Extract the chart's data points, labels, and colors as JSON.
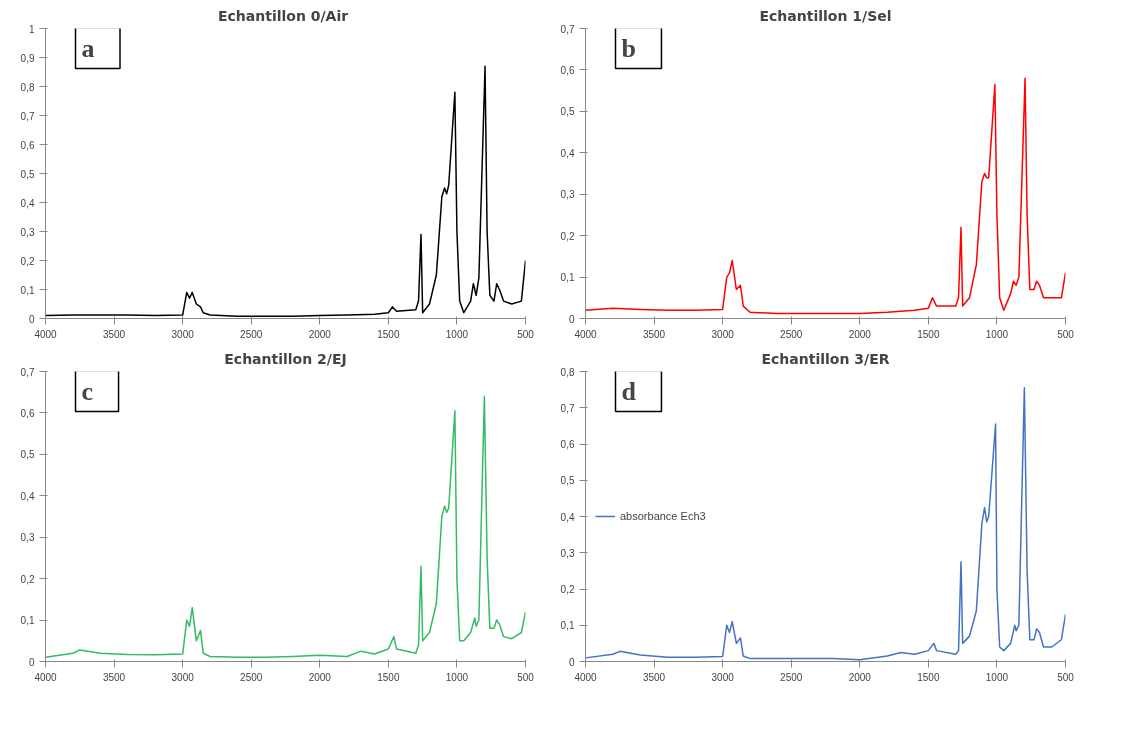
{
  "chart_data": [
    {
      "type": "line",
      "title": "Echantillon  0/Air",
      "annotations": [
        "a"
      ],
      "xlim": [
        4000,
        500
      ],
      "xticks": [
        4000,
        3500,
        3000,
        2500,
        2000,
        1500,
        1000,
        500
      ],
      "ylim": [
        0,
        1
      ],
      "yticks": [
        0,
        {
          "value": 0.1,
          "label": "0,1"
        },
        {
          "value": 0.2,
          "label": "0,2"
        },
        {
          "value": 0.3,
          "label": "0,3"
        },
        {
          "value": 0.4,
          "label": "0,4"
        },
        {
          "value": 0.5,
          "label": "0,5"
        },
        {
          "value": 0.6,
          "label": "0,6"
        },
        {
          "value": 0.7,
          "label": "0,7"
        },
        {
          "value": 0.8,
          "label": "0,8"
        },
        {
          "value": 0.9,
          "label": "0,9"
        },
        1
      ],
      "grid": false,
      "legend": false,
      "line_style": "solid",
      "x": [
        4000,
        3800,
        3600,
        3400,
        3200,
        3000,
        2970,
        2950,
        2930,
        2900,
        2870,
        2850,
        2800,
        2600,
        2400,
        2200,
        2000,
        1800,
        1600,
        1500,
        1470,
        1440,
        1300,
        1280,
        1262,
        1250,
        1200,
        1150,
        1110,
        1090,
        1075,
        1060,
        1015,
        1000,
        980,
        950,
        900,
        880,
        860,
        840,
        795,
        780,
        760,
        730,
        710,
        690,
        660,
        600,
        530,
        500
      ],
      "series": [
        {
          "color": "#000000",
          "values": [
            0.01,
            0.012,
            0.012,
            0.012,
            0.01,
            0.012,
            0.09,
            0.07,
            0.09,
            0.05,
            0.04,
            0.02,
            0.012,
            0.008,
            0.008,
            0.008,
            0.01,
            0.012,
            0.015,
            0.02,
            0.04,
            0.025,
            0.03,
            0.06,
            0.29,
            0.02,
            0.05,
            0.15,
            0.42,
            0.45,
            0.43,
            0.46,
            0.78,
            0.3,
            0.06,
            0.02,
            0.06,
            0.12,
            0.08,
            0.14,
            0.87,
            0.3,
            0.08,
            0.06,
            0.12,
            0.1,
            0.06,
            0.05,
            0.06,
            0.2
          ]
        }
      ]
    },
    {
      "type": "line",
      "title": "Echantillon 1/Sel",
      "annotations": [
        "b"
      ],
      "xlim": [
        4000,
        500
      ],
      "xticks": [
        4000,
        3500,
        3000,
        2500,
        2000,
        1500,
        1000,
        500
      ],
      "ylim": [
        0,
        0.7
      ],
      "yticks": [
        0,
        {
          "value": 0.1,
          "label": "0,1"
        },
        {
          "value": 0.2,
          "label": "0,2"
        },
        {
          "value": 0.3,
          "label": "0,3"
        },
        {
          "value": 0.4,
          "label": "0,4"
        },
        {
          "value": 0.5,
          "label": "0,5"
        },
        {
          "value": 0.6,
          "label": "0,6"
        },
        {
          "value": 0.7,
          "label": "0,7"
        }
      ],
      "grid": false,
      "legend": false,
      "line_style": "solid",
      "x": [
        4000,
        3800,
        3600,
        3400,
        3200,
        3000,
        2970,
        2950,
        2930,
        2900,
        2870,
        2850,
        2800,
        2600,
        2400,
        2200,
        2000,
        1800,
        1600,
        1500,
        1470,
        1440,
        1300,
        1280,
        1262,
        1250,
        1200,
        1150,
        1110,
        1090,
        1075,
        1060,
        1015,
        1000,
        980,
        950,
        900,
        880,
        860,
        840,
        795,
        780,
        760,
        730,
        710,
        690,
        660,
        600,
        530,
        500
      ],
      "series": [
        {
          "color": "#ff0000",
          "values": [
            0.02,
            0.025,
            0.022,
            0.02,
            0.02,
            0.022,
            0.1,
            0.11,
            0.14,
            0.07,
            0.08,
            0.03,
            0.015,
            0.012,
            0.012,
            0.012,
            0.012,
            0.015,
            0.02,
            0.025,
            0.05,
            0.03,
            0.03,
            0.05,
            0.22,
            0.03,
            0.05,
            0.13,
            0.33,
            0.35,
            0.34,
            0.34,
            0.565,
            0.25,
            0.05,
            0.02,
            0.06,
            0.09,
            0.08,
            0.1,
            0.58,
            0.25,
            0.07,
            0.07,
            0.09,
            0.08,
            0.05,
            0.05,
            0.05,
            0.11
          ]
        }
      ]
    },
    {
      "type": "line",
      "title": "Echantillon 2/EJ",
      "annotations": [
        "c"
      ],
      "xlim": [
        4000,
        500
      ],
      "xticks": [
        4000,
        3500,
        3000,
        2500,
        2000,
        1500,
        1000,
        500
      ],
      "ylim": [
        0,
        0.7
      ],
      "yticks": [
        0,
        {
          "value": 0.1,
          "label": "0,1"
        },
        {
          "value": 0.2,
          "label": "0,2"
        },
        {
          "value": 0.3,
          "label": "0,3"
        },
        {
          "value": 0.4,
          "label": "0,4"
        },
        {
          "value": 0.5,
          "label": "0,5"
        },
        {
          "value": 0.6,
          "label": "0,6"
        },
        {
          "value": 0.7,
          "label": "0,7"
        }
      ],
      "grid": false,
      "legend": false,
      "line_style": "solid",
      "x": [
        4000,
        3800,
        3750,
        3600,
        3400,
        3200,
        3000,
        2970,
        2950,
        2930,
        2900,
        2870,
        2850,
        2800,
        2600,
        2400,
        2200,
        2000,
        1800,
        1700,
        1600,
        1500,
        1460,
        1440,
        1300,
        1280,
        1262,
        1250,
        1200,
        1150,
        1110,
        1090,
        1075,
        1060,
        1015,
        1000,
        980,
        950,
        900,
        870,
        860,
        840,
        800,
        780,
        760,
        730,
        710,
        690,
        660,
        600,
        530,
        500
      ],
      "series": [
        {
          "color": "#33bb66",
          "values": [
            0.01,
            0.02,
            0.028,
            0.02,
            0.017,
            0.016,
            0.018,
            0.1,
            0.085,
            0.13,
            0.05,
            0.075,
            0.02,
            0.012,
            0.01,
            0.01,
            0.012,
            0.015,
            0.012,
            0.025,
            0.018,
            0.03,
            0.06,
            0.03,
            0.02,
            0.04,
            0.23,
            0.05,
            0.07,
            0.14,
            0.35,
            0.375,
            0.36,
            0.37,
            0.605,
            0.2,
            0.05,
            0.05,
            0.07,
            0.105,
            0.085,
            0.1,
            0.64,
            0.25,
            0.08,
            0.08,
            0.1,
            0.09,
            0.06,
            0.055,
            0.07,
            0.12
          ]
        }
      ]
    },
    {
      "type": "line",
      "title": "Echantillon 3/ER",
      "annotations": [
        "d"
      ],
      "xlim": [
        4000,
        500
      ],
      "xticks": [
        4000,
        3500,
        3000,
        2500,
        2000,
        1500,
        1000,
        500
      ],
      "ylim": [
        0,
        0.8
      ],
      "yticks": [
        0,
        {
          "value": 0.1,
          "label": "0,1"
        },
        {
          "value": 0.2,
          "label": "0,2"
        },
        {
          "value": 0.3,
          "label": "0,3"
        },
        {
          "value": 0.4,
          "label": "0,4"
        },
        {
          "value": 0.5,
          "label": "0,5"
        },
        {
          "value": 0.6,
          "label": "0,6"
        },
        {
          "value": 0.7,
          "label": "0,7"
        },
        {
          "value": 0.8,
          "label": "0,8"
        }
      ],
      "grid": false,
      "legend": "left",
      "line_style": "solid",
      "x": [
        4000,
        3800,
        3750,
        3600,
        3400,
        3200,
        3000,
        2970,
        2950,
        2930,
        2900,
        2870,
        2850,
        2800,
        2600,
        2400,
        2200,
        2000,
        1800,
        1700,
        1600,
        1500,
        1460,
        1440,
        1300,
        1280,
        1262,
        1250,
        1200,
        1150,
        1110,
        1090,
        1075,
        1060,
        1010,
        1000,
        980,
        950,
        900,
        870,
        860,
        840,
        800,
        780,
        760,
        730,
        710,
        690,
        660,
        600,
        530,
        500
      ],
      "series": [
        {
          "name": "absorbance Ech3",
          "color": "#4472c4",
          "values": [
            0.01,
            0.02,
            0.028,
            0.018,
            0.012,
            0.012,
            0.014,
            0.1,
            0.08,
            0.11,
            0.05,
            0.065,
            0.015,
            0.008,
            0.008,
            0.008,
            0.008,
            0.005,
            0.015,
            0.025,
            0.02,
            0.03,
            0.05,
            0.03,
            0.02,
            0.03,
            0.275,
            0.05,
            0.07,
            0.14,
            0.38,
            0.425,
            0.385,
            0.4,
            0.655,
            0.2,
            0.04,
            0.03,
            0.05,
            0.1,
            0.085,
            0.1,
            0.755,
            0.25,
            0.06,
            0.06,
            0.09,
            0.08,
            0.04,
            0.04,
            0.06,
            0.13
          ]
        }
      ]
    }
  ]
}
